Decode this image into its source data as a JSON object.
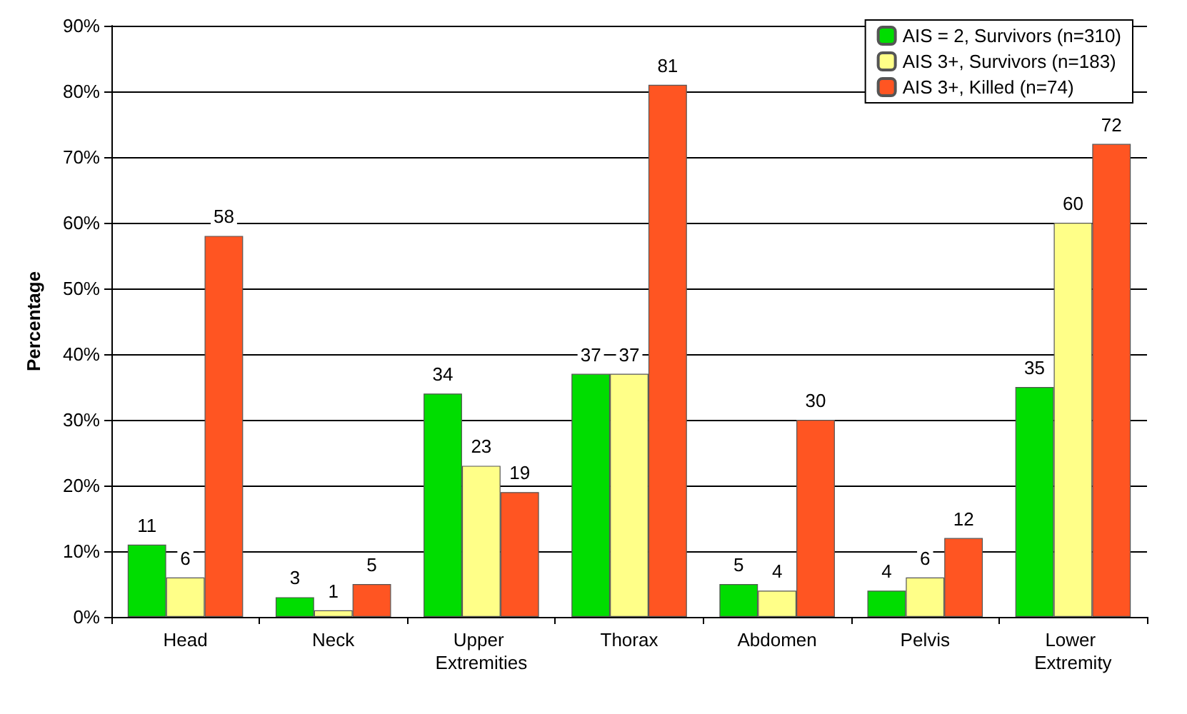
{
  "chart_data": {
    "type": "bar",
    "ylabel": "Percentage",
    "categories": [
      "Head",
      "Neck",
      "Upper Extremities",
      "Thorax",
      "Abdomen",
      "Pelvis",
      "Lower Extremity"
    ],
    "series": [
      {
        "name": "AIS = 2, Survivors (n=310)",
        "color": "#00dd00",
        "values": [
          11,
          3,
          34,
          37,
          5,
          4,
          35
        ]
      },
      {
        "name": "AIS 3+, Survivors (n=183)",
        "color": "#ffff88",
        "values": [
          6,
          1,
          23,
          37,
          4,
          6,
          60
        ]
      },
      {
        "name": "AIS 3+, Killed (n=74)",
        "color": "#ff5522",
        "values": [
          58,
          5,
          19,
          81,
          30,
          12,
          72
        ]
      }
    ],
    "ylim": [
      0,
      90
    ],
    "yticks": [
      {
        "value": 0,
        "label": "0%"
      },
      {
        "value": 10,
        "label": "10%"
      },
      {
        "value": 20,
        "label": "20%"
      },
      {
        "value": 30,
        "label": "30%"
      },
      {
        "value": 40,
        "label": "40%"
      },
      {
        "value": 50,
        "label": "50%"
      },
      {
        "value": 60,
        "label": "60%"
      },
      {
        "value": 70,
        "label": "70%"
      },
      {
        "value": 80,
        "label": "80%"
      },
      {
        "value": 90,
        "label": "90%"
      }
    ],
    "grid": "y",
    "legend": "top right",
    "data_labels": true
  }
}
